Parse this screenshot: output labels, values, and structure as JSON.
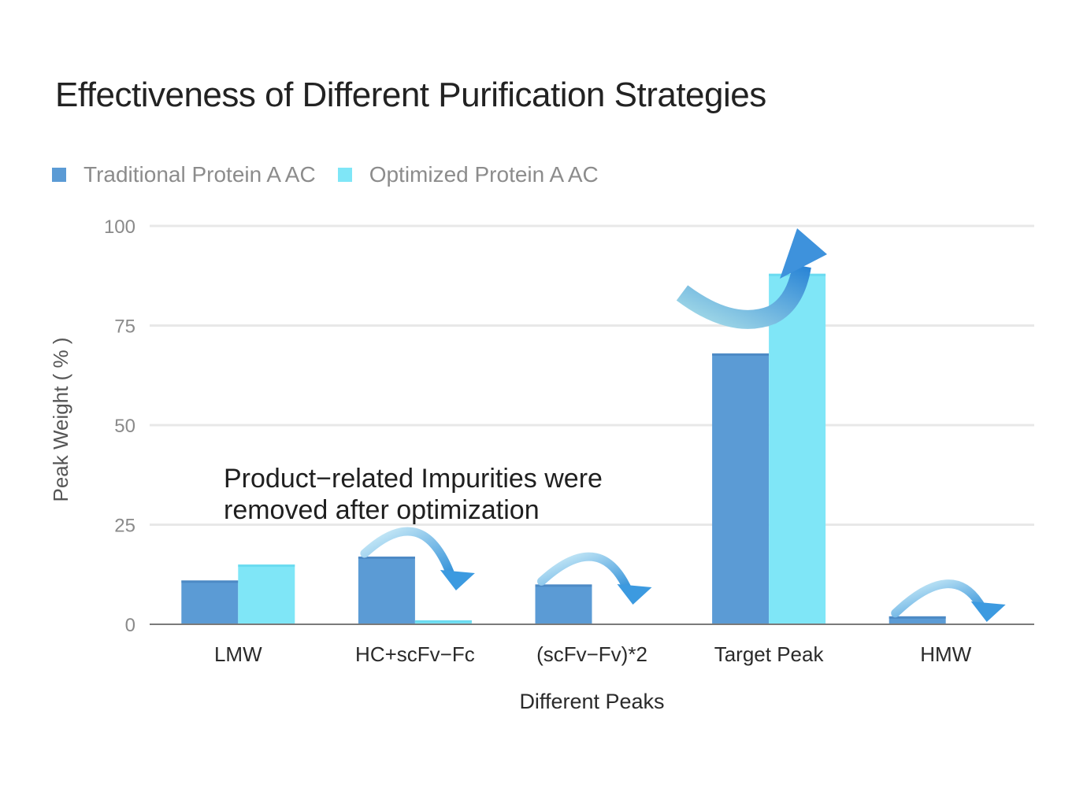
{
  "chart_data": {
    "type": "bar",
    "title": "Effectiveness of Different Purification Strategies",
    "xlabel": "Different Peaks",
    "ylabel": "Peak Weight ( % )",
    "ylim": [
      0,
      100
    ],
    "yticks": [
      0,
      25,
      50,
      75,
      100
    ],
    "grid": true,
    "legend_position": "top-left",
    "categories": [
      "LMW",
      "HC+scFv−Fc",
      "(scFv−Fv)*2",
      "Target Peak",
      "HMW"
    ],
    "series": [
      {
        "name": "Traditional Protein A AC",
        "color": "#5b9bd5",
        "values": [
          11,
          17,
          10,
          68,
          2
        ]
      },
      {
        "name": "Optimized Protein A AC",
        "color": "#7fe6f7",
        "values": [
          15,
          1,
          0,
          88,
          0
        ]
      }
    ],
    "annotations": [
      {
        "text": "Product−related Impurities were",
        "type": "callout-line-1"
      },
      {
        "text": "removed after optimization",
        "type": "callout-line-2"
      }
    ],
    "arrows": [
      {
        "category": "HC+scFv−Fc",
        "direction": "down"
      },
      {
        "category": "(scFv−Fv)*2",
        "direction": "down"
      },
      {
        "category": "HMW",
        "direction": "down"
      },
      {
        "category": "Target Peak",
        "direction": "up"
      }
    ]
  }
}
